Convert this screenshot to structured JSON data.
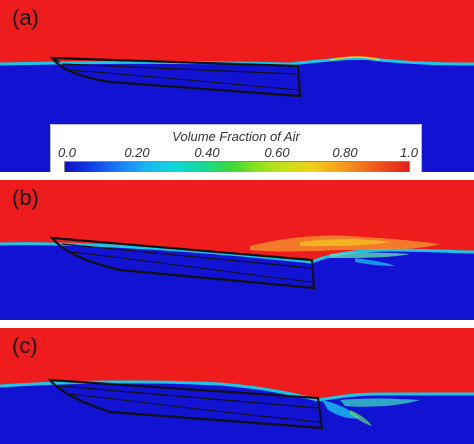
{
  "panels": [
    {
      "label": "(a)"
    },
    {
      "label": "(b)"
    },
    {
      "label": "(c)"
    }
  ],
  "legend": {
    "title": "Volume Fraction of Air",
    "ticks": [
      "0.0",
      "0.20",
      "0.40",
      "0.60",
      "0.80",
      "1.0"
    ]
  },
  "colors": {
    "air": "#ee1c1c",
    "water": "#1212d2",
    "interface": "#19c6e6",
    "hull_outline": "#111111"
  }
}
